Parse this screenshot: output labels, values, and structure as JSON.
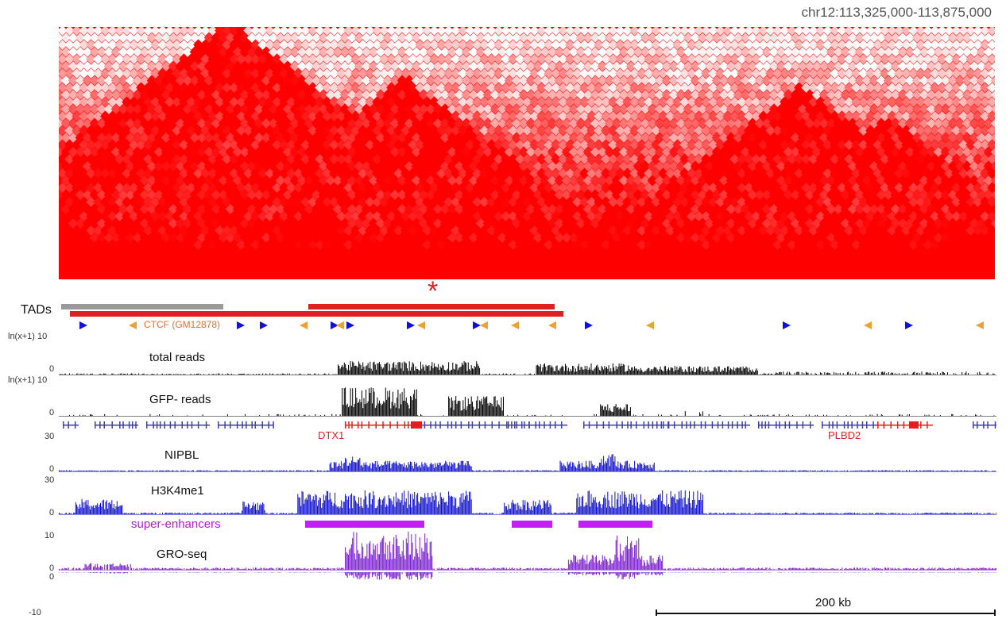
{
  "region": "chr12:113,325,000-113,875,000",
  "colors": {
    "hic": "#ff0000",
    "tad_gray": "#999999",
    "tad_red": "#e02020",
    "ctcf_forward": "#1010dd",
    "ctcf_reverse": "#f0a030",
    "reads": "#000000",
    "genes": "#4040a0",
    "gene_highlight": "#e02020",
    "nipbl": "#1010cc",
    "h3k4me1": "#1010cc",
    "super_enhancers": "#c020f0",
    "gro_seq": "#7a20d0"
  },
  "labels": {
    "tads": "TADs",
    "asterisk": "*",
    "ctcf": "CTCF (GM12878)",
    "total_reads": "total reads",
    "gfp_reads": "GFP- reads",
    "dtx1": "DTX1",
    "plbd2": "PLBD2",
    "nipbl": "NIPBL",
    "h3k4me1": "H3K4me1",
    "super_enhancers": "super-enhancers",
    "gro_seq": "GRO-seq",
    "scale": "200 kb"
  },
  "axes": {
    "reads_top": "ln(x+1) 10",
    "reads_zero": "0",
    "gfp_top": "ln(x+1) 10",
    "gfp_zero": "0",
    "nipbl_top": "30",
    "nipbl_zero": "0",
    "h3k_top": "30",
    "h3k_zero": "0",
    "gro_top": "10",
    "gro_zero1": "0",
    "gro_zero2": "0",
    "gro_bottom": "-10"
  }
}
